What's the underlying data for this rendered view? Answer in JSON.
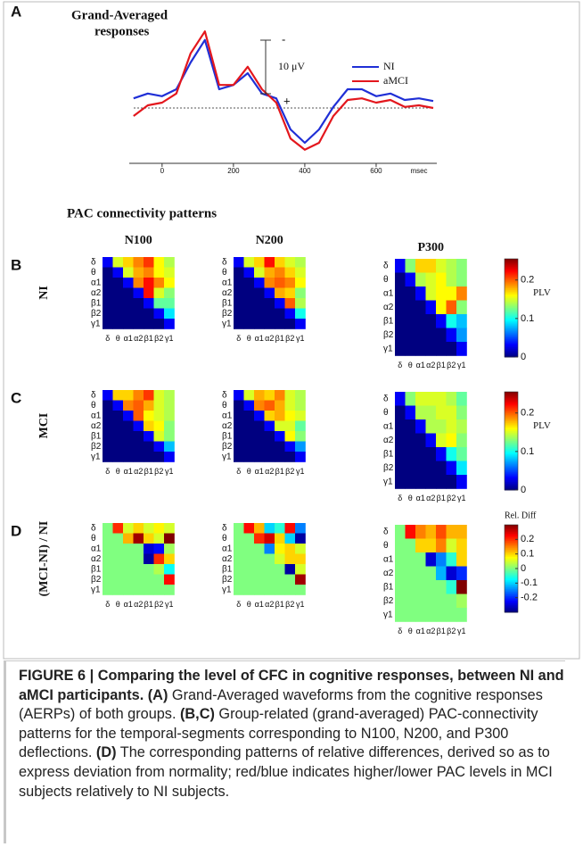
{
  "panel_a": {
    "type": "line",
    "label": "A",
    "title": [
      "Grand-Averaged",
      "responses"
    ],
    "x_label": "msec",
    "x": [
      -80,
      -40,
      0,
      40,
      80,
      120,
      160,
      200,
      240,
      280,
      320,
      360,
      400,
      440,
      480,
      520,
      560,
      600,
      640,
      680,
      720,
      760
    ],
    "series": [
      {
        "name": "NI",
        "color": "#1f2fd6",
        "values": [
          -1.8,
          -2.7,
          -2.2,
          -3.5,
          -8.5,
          -12.7,
          -3.5,
          -4.3,
          -6.5,
          -2.7,
          -1.8,
          4,
          6.5,
          4,
          -0.2,
          -3.5,
          -3.5,
          -2.2,
          -2.7,
          -1.5,
          -1.8,
          -1.3
        ]
      },
      {
        "name": "aMCI",
        "color": "#e3171d",
        "values": [
          1.5,
          -0.5,
          -1,
          -2.7,
          -10.2,
          -14.3,
          -4.3,
          -4.3,
          -7.7,
          -3.5,
          -1,
          5.7,
          7.8,
          6.5,
          1.5,
          -1.5,
          -1.8,
          -1,
          -1.5,
          -0.2,
          -0.5,
          0
        ]
      }
    ],
    "xlim": [
      -92,
      770
    ],
    "xticks": [
      0,
      200,
      400,
      600
    ],
    "ylim": [
      -16,
      10
    ],
    "negative_up": true,
    "scale_bar": {
      "value": 10,
      "label": "10 μV",
      "top_label": "-",
      "bottom_label": "+"
    }
  },
  "heatmap_title": "PAC connectivity patterns",
  "columns": [
    "N100",
    "N200",
    "P300"
  ],
  "bands": [
    "δ",
    "θ",
    "α1",
    "α2",
    "β1",
    "β2",
    "γ1"
  ],
  "rows": [
    {
      "label": "B",
      "row_label": "NI",
      "colorbar": {
        "label": "PLV",
        "clim": [
          0,
          0.255
        ],
        "ticks": [
          0.2,
          0.1,
          0
        ]
      },
      "matrices": [
        [
          [
            0.03,
            0.15,
            0.17,
            0.19,
            0.21,
            0.16,
            0.14
          ],
          [
            0,
            0.03,
            0.15,
            0.18,
            0.19,
            0.16,
            0.15
          ],
          [
            0,
            0,
            0.03,
            0.19,
            0.22,
            0.19,
            0.16
          ],
          [
            0,
            0,
            0,
            0.03,
            0.22,
            0.15,
            0.13
          ],
          [
            0,
            0,
            0,
            0,
            0.03,
            0.12,
            0.12
          ],
          [
            0,
            0,
            0,
            0,
            0,
            0.03,
            0.09
          ],
          [
            0,
            0,
            0,
            0,
            0,
            0,
            0.03
          ]
        ],
        [
          [
            0.03,
            0.15,
            0.17,
            0.22,
            0.17,
            0.15,
            0.14
          ],
          [
            0,
            0.03,
            0.15,
            0.18,
            0.19,
            0.17,
            0.15
          ],
          [
            0,
            0,
            0.03,
            0.19,
            0.2,
            0.19,
            0.16
          ],
          [
            0,
            0,
            0,
            0.03,
            0.18,
            0.17,
            0.13
          ],
          [
            0,
            0,
            0,
            0,
            0.03,
            0.2,
            0.14
          ],
          [
            0,
            0,
            0,
            0,
            0,
            0.03,
            0.1
          ],
          [
            0,
            0,
            0,
            0,
            0,
            0,
            0.03
          ]
        ],
        [
          [
            0.03,
            0.13,
            0.17,
            0.17,
            0.15,
            0.14,
            0.13
          ],
          [
            0,
            0.03,
            0.14,
            0.15,
            0.16,
            0.14,
            0.13
          ],
          [
            0,
            0,
            0.03,
            0.15,
            0.16,
            0.16,
            0.19
          ],
          [
            0,
            0,
            0,
            0.03,
            0.16,
            0.2,
            0.13
          ],
          [
            0,
            0,
            0,
            0,
            0.03,
            0.1,
            0.08
          ],
          [
            0,
            0,
            0,
            0,
            0,
            0.03,
            0.07
          ],
          [
            0,
            0,
            0,
            0,
            0,
            0,
            0.03
          ]
        ]
      ]
    },
    {
      "label": "C",
      "row_label": "MCI",
      "colorbar": {
        "label": "PLV",
        "clim": [
          0,
          0.255
        ],
        "ticks": [
          0.2,
          0.1,
          0
        ]
      },
      "matrices": [
        [
          [
            0.03,
            0.17,
            0.17,
            0.19,
            0.21,
            0.15,
            0.14
          ],
          [
            0,
            0.03,
            0.19,
            0.2,
            0.18,
            0.15,
            0.14
          ],
          [
            0,
            0,
            0.03,
            0.2,
            0.16,
            0.15,
            0.14
          ],
          [
            0,
            0,
            0,
            0.03,
            0.17,
            0.16,
            0.13
          ],
          [
            0,
            0,
            0,
            0,
            0.03,
            0.15,
            0.13
          ],
          [
            0,
            0,
            0,
            0,
            0,
            0.03,
            0.08
          ],
          [
            0,
            0,
            0,
            0,
            0,
            0,
            0.03
          ]
        ],
        [
          [
            0.03,
            0.15,
            0.18,
            0.17,
            0.19,
            0.15,
            0.14
          ],
          [
            0,
            0.03,
            0.19,
            0.2,
            0.18,
            0.15,
            0.14
          ],
          [
            0,
            0,
            0.03,
            0.17,
            0.18,
            0.16,
            0.15
          ],
          [
            0,
            0,
            0,
            0.03,
            0.15,
            0.15,
            0.12
          ],
          [
            0,
            0,
            0,
            0,
            0.03,
            0.16,
            0.13
          ],
          [
            0,
            0,
            0,
            0,
            0,
            0.03,
            0.07
          ],
          [
            0,
            0,
            0,
            0,
            0,
            0,
            0.03
          ]
        ],
        [
          [
            0.03,
            0.13,
            0.15,
            0.15,
            0.15,
            0.14,
            0.12
          ],
          [
            0,
            0.03,
            0.14,
            0.14,
            0.15,
            0.15,
            0.13
          ],
          [
            0,
            0,
            0.03,
            0.14,
            0.14,
            0.15,
            0.14
          ],
          [
            0,
            0,
            0,
            0.03,
            0.15,
            0.16,
            0.13
          ],
          [
            0,
            0,
            0,
            0,
            0.03,
            0.1,
            0.12
          ],
          [
            0,
            0,
            0,
            0,
            0,
            0.03,
            0.09
          ],
          [
            0,
            0,
            0,
            0,
            0,
            0,
            0.03
          ]
        ]
      ]
    },
    {
      "label": "D",
      "row_label": "(MCI-NI) / NI",
      "colorbar": {
        "label": "Rel. Diff",
        "clim": [
          -0.3,
          0.3
        ],
        "ticks": [
          0.2,
          0.1,
          0,
          -0.1,
          -0.2
        ]
      },
      "matrices": [
        [
          [
            0,
            0.2,
            0.05,
            0.1,
            0.05,
            0.08,
            0.05
          ],
          [
            0,
            0,
            0.12,
            0.28,
            0.1,
            0.05,
            0.3
          ],
          [
            0,
            0,
            0,
            0,
            -0.25,
            -0.22,
            0.02
          ],
          [
            0,
            0,
            0,
            0,
            -0.28,
            0.2,
            0.1
          ],
          [
            0,
            0,
            0,
            0,
            0,
            0.03,
            -0.07
          ],
          [
            0,
            0,
            0,
            0,
            0,
            0,
            0.22
          ],
          [
            0,
            0,
            0,
            0,
            0,
            0,
            0
          ]
        ],
        [
          [
            0,
            0.22,
            0.12,
            -0.1,
            -0.05,
            0.22,
            -0.15
          ],
          [
            0,
            0,
            0.2,
            0.25,
            0.1,
            -0.1,
            -0.28
          ],
          [
            0,
            0,
            0,
            -0.15,
            0.08,
            0.1,
            0.05
          ],
          [
            0,
            0,
            0,
            0,
            0.05,
            0.1,
            0.1
          ],
          [
            0,
            0,
            0,
            0,
            0,
            -0.28,
            0.05
          ],
          [
            0,
            0,
            0,
            0,
            0,
            0,
            0.28
          ],
          [
            0,
            0,
            0,
            0,
            0,
            0,
            0
          ]
        ],
        [
          [
            0,
            0.22,
            0.15,
            0.12,
            0.18,
            0.12,
            0.12
          ],
          [
            0,
            0,
            0.1,
            0.1,
            0.15,
            0.05,
            0.1
          ],
          [
            0,
            0,
            0,
            -0.25,
            -0.15,
            -0.05,
            0.1
          ],
          [
            0,
            0,
            0,
            0,
            -0.12,
            -0.25,
            -0.2
          ],
          [
            0,
            0,
            0,
            0,
            0,
            -0.05,
            0.3
          ],
          [
            0,
            0,
            0,
            0,
            0,
            0,
            0.02
          ],
          [
            0,
            0,
            0,
            0,
            0,
            0,
            0
          ]
        ]
      ]
    }
  ],
  "caption": {
    "label": "FIGURE 6 |",
    "title": "Comparing the level of CFC in cognitive responses, between NI and aMCI participants.",
    "parts": [
      {
        "ref": "(A)",
        "text": "Grand-Averaged waveforms from the cognitive responses (AERPs) of both groups."
      },
      {
        "ref": "(B,C)",
        "text": "Group-related (grand-averaged) PAC-connectivity patterns for the temporal-segments corresponding to N100, N200, and P300 deflections."
      },
      {
        "ref": "(D)",
        "text": "The corresponding patterns of relative differences, derived so as to express deviation from normality; red/blue indicates higher/lower PAC levels in MCI subjects relatively to NI subjects."
      }
    ]
  }
}
